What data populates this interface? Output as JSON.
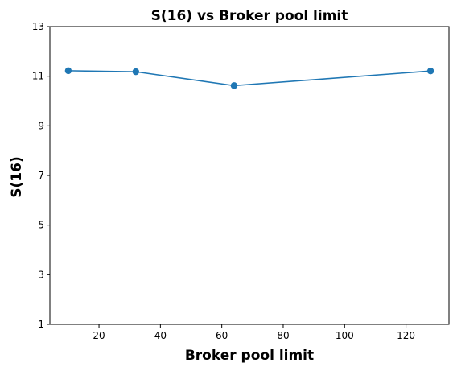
{
  "chart_data": {
    "type": "line",
    "title": "S(16) vs Broker pool limit",
    "xlabel": "Broker pool limit",
    "ylabel": "S(16)",
    "xlim": [
      4,
      134
    ],
    "ylim": [
      1,
      13
    ],
    "xticks": [
      20,
      40,
      60,
      80,
      100,
      120
    ],
    "yticks": [
      1,
      3,
      5,
      7,
      9,
      11,
      13
    ],
    "grid": false,
    "legend": "none",
    "series": [
      {
        "color": "#1f77b4",
        "marker": "circle",
        "x": [
          10,
          32,
          64,
          128
        ],
        "y": [
          11.22,
          11.18,
          10.62,
          11.21
        ]
      }
    ]
  }
}
